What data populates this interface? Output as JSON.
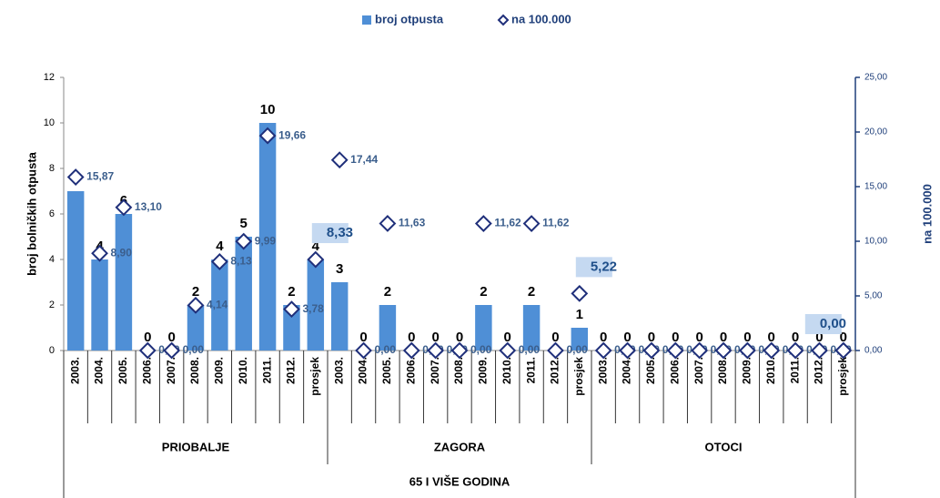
{
  "chart_data": {
    "type": "bar_line",
    "legend": "top",
    "categories": [
      "2003.",
      "2004.",
      "2005.",
      "2006.",
      "2007.",
      "2008.",
      "2009.",
      "2010.",
      "2011.",
      "2012.",
      "prosjek",
      "2003.",
      "2004.",
      "2005.",
      "2006.",
      "2007.",
      "2008.",
      "2009.",
      "2010.",
      "2011.",
      "2012.",
      "prosjek",
      "2003.",
      "2004.",
      "2005.",
      "2006.",
      "2007.",
      "2008.",
      "2009.",
      "2010.",
      "2011.",
      "2012.",
      "prosjek"
    ],
    "groups": [
      "PRIOBALJE",
      "ZAGORA",
      "OTOCI"
    ],
    "group_title": "65 I VIŠE GODINA",
    "ylabel": "broj bolničkih otpusta",
    "y2label": "na 100.000",
    "ylim": [
      0,
      12
    ],
    "yticks": [
      0,
      2,
      4,
      6,
      8,
      10,
      12
    ],
    "y2lim": [
      0,
      25
    ],
    "y2ticks": [
      {
        "value": 0,
        "label": "0,00"
      },
      {
        "value": 5,
        "label": "5,00"
      },
      {
        "value": 10,
        "label": "10,00"
      },
      {
        "value": 15,
        "label": "15,00"
      },
      {
        "value": 20,
        "label": "20,00"
      },
      {
        "value": 25,
        "label": "25,00"
      }
    ],
    "series": [
      {
        "name": "broj otpusta",
        "type": "bar",
        "color": "#4f8fd6",
        "values": [
          7,
          4,
          6,
          0,
          0,
          2,
          4,
          5,
          10,
          2,
          4,
          3,
          0,
          2,
          0,
          0,
          0,
          2,
          0,
          2,
          0,
          1,
          0,
          0,
          0,
          0,
          0,
          0,
          0,
          0,
          0,
          0,
          0
        ]
      },
      {
        "name": "na 100.000",
        "type": "diamond",
        "axis": "y2",
        "color": "#1f2f7a",
        "values": [
          15.87,
          8.9,
          13.1,
          0,
          0,
          4.14,
          8.13,
          9.99,
          19.66,
          3.78,
          8.33,
          17.44,
          0,
          11.63,
          0,
          0,
          0,
          11.62,
          0,
          11.62,
          0,
          5.22,
          0,
          0,
          0,
          0,
          0,
          0,
          0,
          0,
          0,
          0,
          0
        ],
        "value_labels": [
          "15,87",
          "8,90",
          "13,10",
          "0,00",
          "0,00",
          "4,14",
          "8,13",
          "9,99",
          "19,66",
          "3,78",
          "8,33",
          "17,44",
          "0,00",
          "11,63",
          "0,00",
          "0,00",
          "0,00",
          "11,62",
          "0,00",
          "11,62",
          "0,00",
          "5,22",
          "0,00",
          "0,00",
          "0,00",
          "0,00",
          "0,00",
          "0,00",
          "0,00",
          "0,00",
          "0,00",
          "0,00",
          "0,00"
        ]
      }
    ]
  }
}
